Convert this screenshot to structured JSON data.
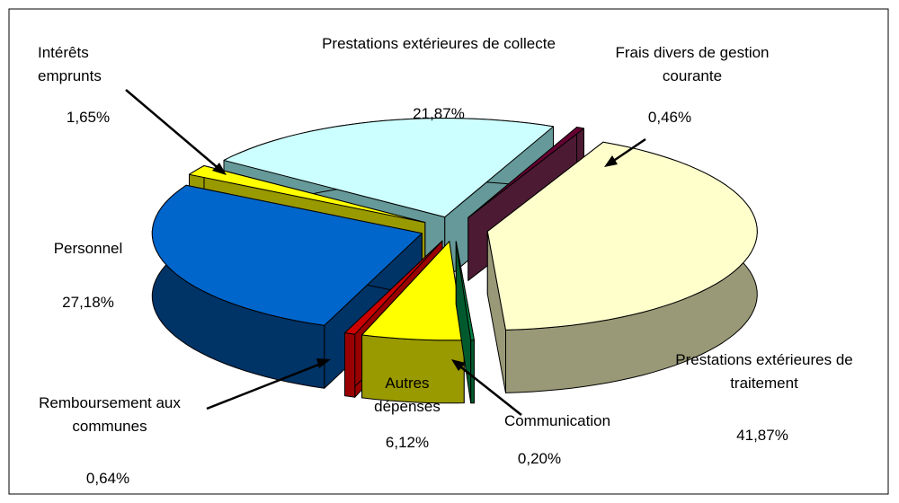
{
  "chart_data": {
    "type": "pie3d",
    "categories": [
      "Prestations extérieures de collecte",
      "Frais divers de gestion courante",
      "Prestations extérieures de traitement",
      "Communication",
      "Autres dépenses",
      "Remboursement aux communes",
      "Personnel",
      "Intérêts emprunts"
    ],
    "values": [
      21.87,
      0.46,
      41.87,
      0.2,
      6.12,
      0.64,
      27.18,
      1.65
    ],
    "value_labels": [
      "21,87%",
      "0,46%",
      "41,87%",
      "0,20%",
      "6,12%",
      "0,64%",
      "27,18%",
      "1,65%"
    ],
    "colors": [
      "#ccffff",
      "#660033",
      "#ffffcc",
      "#008040",
      "#ffff00",
      "#cc0000",
      "#0066cc",
      "#ffff00"
    ],
    "side_colors": [
      "#669999",
      "#4d1a33",
      "#999977",
      "#005a2d",
      "#999900",
      "#990000",
      "#003366",
      "#999900"
    ]
  }
}
